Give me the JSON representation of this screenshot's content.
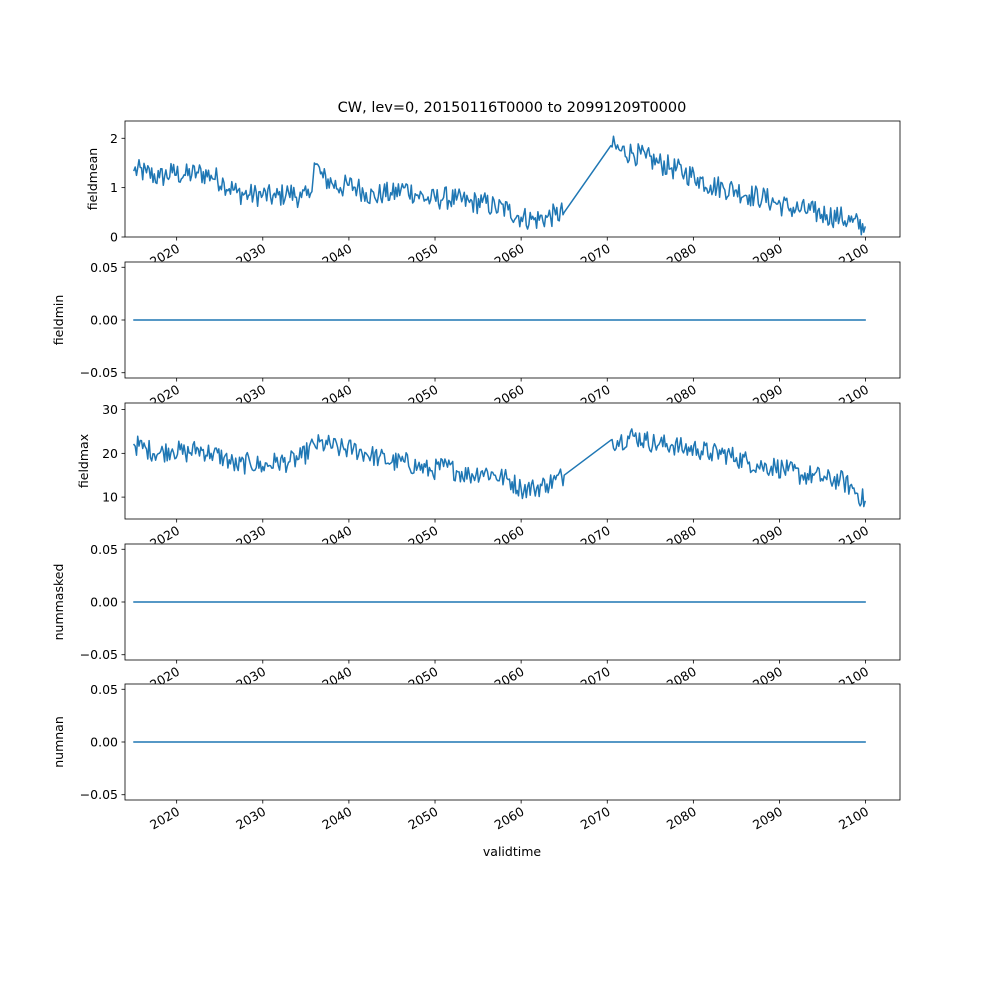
{
  "chart_data": {
    "type": "line",
    "title": "CW, lev=0, 20150116T0000 to 20991209T0000",
    "xlabel": "validtime",
    "x_tick_labels": [
      "2020",
      "2030",
      "2040",
      "2050",
      "2060",
      "2070",
      "2080",
      "2090",
      "2100"
    ],
    "x_range": [
      "2014-01-01",
      "2103-12-31"
    ],
    "line_color": "#1f77b4",
    "grid": false,
    "panels": [
      {
        "ylabel": "fieldmean",
        "ylim": [
          0,
          2.35
        ],
        "y_ticks": [
          0,
          1,
          2
        ],
        "y_tick_labels": [
          "0",
          "1",
          "2"
        ],
        "series": [
          {
            "x": [
              "2015-01-16",
              "2016-07-01",
              "2018-01-01",
              "2019-07-01",
              "2021-01-01",
              "2022-07-01",
              "2024-01-01",
              "2025-07-01",
              "2027-01-01",
              "2028-07-01",
              "2030-01-01",
              "2031-07-01",
              "2033-01-01",
              "2034-07-01",
              "2035-06-01",
              "2036-01-01",
              "2037-01-01",
              "2038-01-01",
              "2039-01-01",
              "2040-01-01",
              "2041-01-01",
              "2042-01-01",
              "2043-01-01",
              "2044-01-01",
              "2045-01-01",
              "2046-07-01",
              "2048-01-01",
              "2049-07-01",
              "2051-01-01",
              "2052-07-01",
              "2054-01-01",
              "2055-07-01",
              "2057-01-01",
              "2058-07-01",
              "2060-01-01",
              "2061-07-01",
              "2063-01-01",
              "2064-01-01",
              "2065-01-01",
              "2070-06-01",
              "2071-07-01",
              "2073-01-01",
              "2074-07-01",
              "2076-01-01",
              "2077-07-01",
              "2079-01-01",
              "2080-07-01",
              "2082-01-01",
              "2083-07-01",
              "2085-01-01",
              "2086-07-01",
              "2088-01-01",
              "2089-07-01",
              "2091-01-01",
              "2092-07-01",
              "2094-01-01",
              "2095-07-01",
              "2097-01-01",
              "2098-07-01",
              "2099-12-09"
            ],
            "y": [
              1.35,
              1.3,
              1.2,
              1.3,
              1.25,
              1.3,
              1.25,
              1.1,
              0.9,
              0.85,
              0.85,
              0.8,
              0.9,
              0.8,
              0.8,
              1.5,
              1.2,
              1.1,
              1.0,
              1.05,
              1.0,
              0.9,
              0.8,
              0.9,
              0.85,
              1.0,
              0.85,
              0.75,
              0.8,
              0.75,
              0.7,
              0.7,
              0.6,
              0.55,
              0.4,
              0.35,
              0.4,
              0.45,
              0.5,
              1.85,
              1.75,
              1.7,
              1.6,
              1.5,
              1.4,
              1.3,
              1.2,
              1.05,
              1.0,
              0.95,
              0.85,
              0.8,
              0.7,
              0.6,
              0.55,
              0.5,
              0.45,
              0.4,
              0.3,
              0.2
            ]
          }
        ]
      },
      {
        "ylabel": "fieldmin",
        "ylim": [
          -0.055,
          0.055
        ],
        "y_ticks": [
          -0.05,
          0.0,
          0.05
        ],
        "y_tick_labels": [
          "−0.05",
          "0.00",
          "0.05"
        ],
        "series": [
          {
            "x": [
              "2015-01-16",
              "2099-12-09"
            ],
            "y": [
              0,
              0
            ]
          }
        ]
      },
      {
        "ylabel": "fieldmax",
        "ylim": [
          5,
          31.5
        ],
        "y_ticks": [
          10,
          20,
          30
        ],
        "y_tick_labels": [
          "10",
          "20",
          "30"
        ],
        "series": [
          {
            "x": [
              "2015-01-16",
              "2016-07-01",
              "2018-01-01",
              "2019-07-01",
              "2021-01-01",
              "2022-07-01",
              "2024-01-01",
              "2025-07-01",
              "2027-01-01",
              "2028-07-01",
              "2030-01-01",
              "2031-07-01",
              "2033-01-01",
              "2034-07-01",
              "2036-01-01",
              "2037-07-01",
              "2039-01-01",
              "2040-07-01",
              "2042-01-01",
              "2043-07-01",
              "2045-01-01",
              "2046-07-01",
              "2048-01-01",
              "2049-07-01",
              "2051-01-01",
              "2052-07-01",
              "2054-01-01",
              "2055-07-01",
              "2057-01-01",
              "2058-07-01",
              "2060-01-01",
              "2061-07-01",
              "2063-01-01",
              "2064-01-01",
              "2065-01-01",
              "2070-06-01",
              "2071-07-01",
              "2073-01-01",
              "2074-07-01",
              "2076-01-01",
              "2077-07-01",
              "2079-01-01",
              "2080-07-01",
              "2082-01-01",
              "2083-07-01",
              "2085-01-01",
              "2086-07-01",
              "2088-01-01",
              "2089-07-01",
              "2091-01-01",
              "2092-07-01",
              "2094-01-01",
              "2095-07-01",
              "2097-01-01",
              "2098-07-01",
              "2099-12-09"
            ],
            "y": [
              22,
              21,
              20,
              21,
              20,
              21,
              20,
              19,
              17,
              18,
              17,
              18,
              18,
              19,
              22,
              22,
              21,
              21,
              20,
              19,
              18,
              18,
              17,
              16,
              17,
              16,
              15,
              16,
              15,
              14,
              12,
              12,
              13,
              14,
              15,
              23,
              23,
              24,
              23,
              22,
              22,
              21,
              21,
              20,
              20,
              19,
              18,
              17,
              17,
              16,
              15,
              15,
              14,
              14,
              12,
              9
            ]
          }
        ]
      },
      {
        "ylabel": "nummasked",
        "ylim": [
          -0.055,
          0.055
        ],
        "y_ticks": [
          -0.05,
          0.0,
          0.05
        ],
        "y_tick_labels": [
          "−0.05",
          "0.00",
          "0.05"
        ],
        "series": [
          {
            "x": [
              "2015-01-16",
              "2099-12-09"
            ],
            "y": [
              0,
              0
            ]
          }
        ]
      },
      {
        "ylabel": "numnan",
        "ylim": [
          -0.055,
          0.055
        ],
        "y_ticks": [
          -0.05,
          0.0,
          0.05
        ],
        "y_tick_labels": [
          "−0.05",
          "0.00",
          "0.05"
        ],
        "series": [
          {
            "x": [
              "2015-01-16",
              "2099-12-09"
            ],
            "y": [
              0,
              0
            ]
          }
        ]
      }
    ]
  }
}
